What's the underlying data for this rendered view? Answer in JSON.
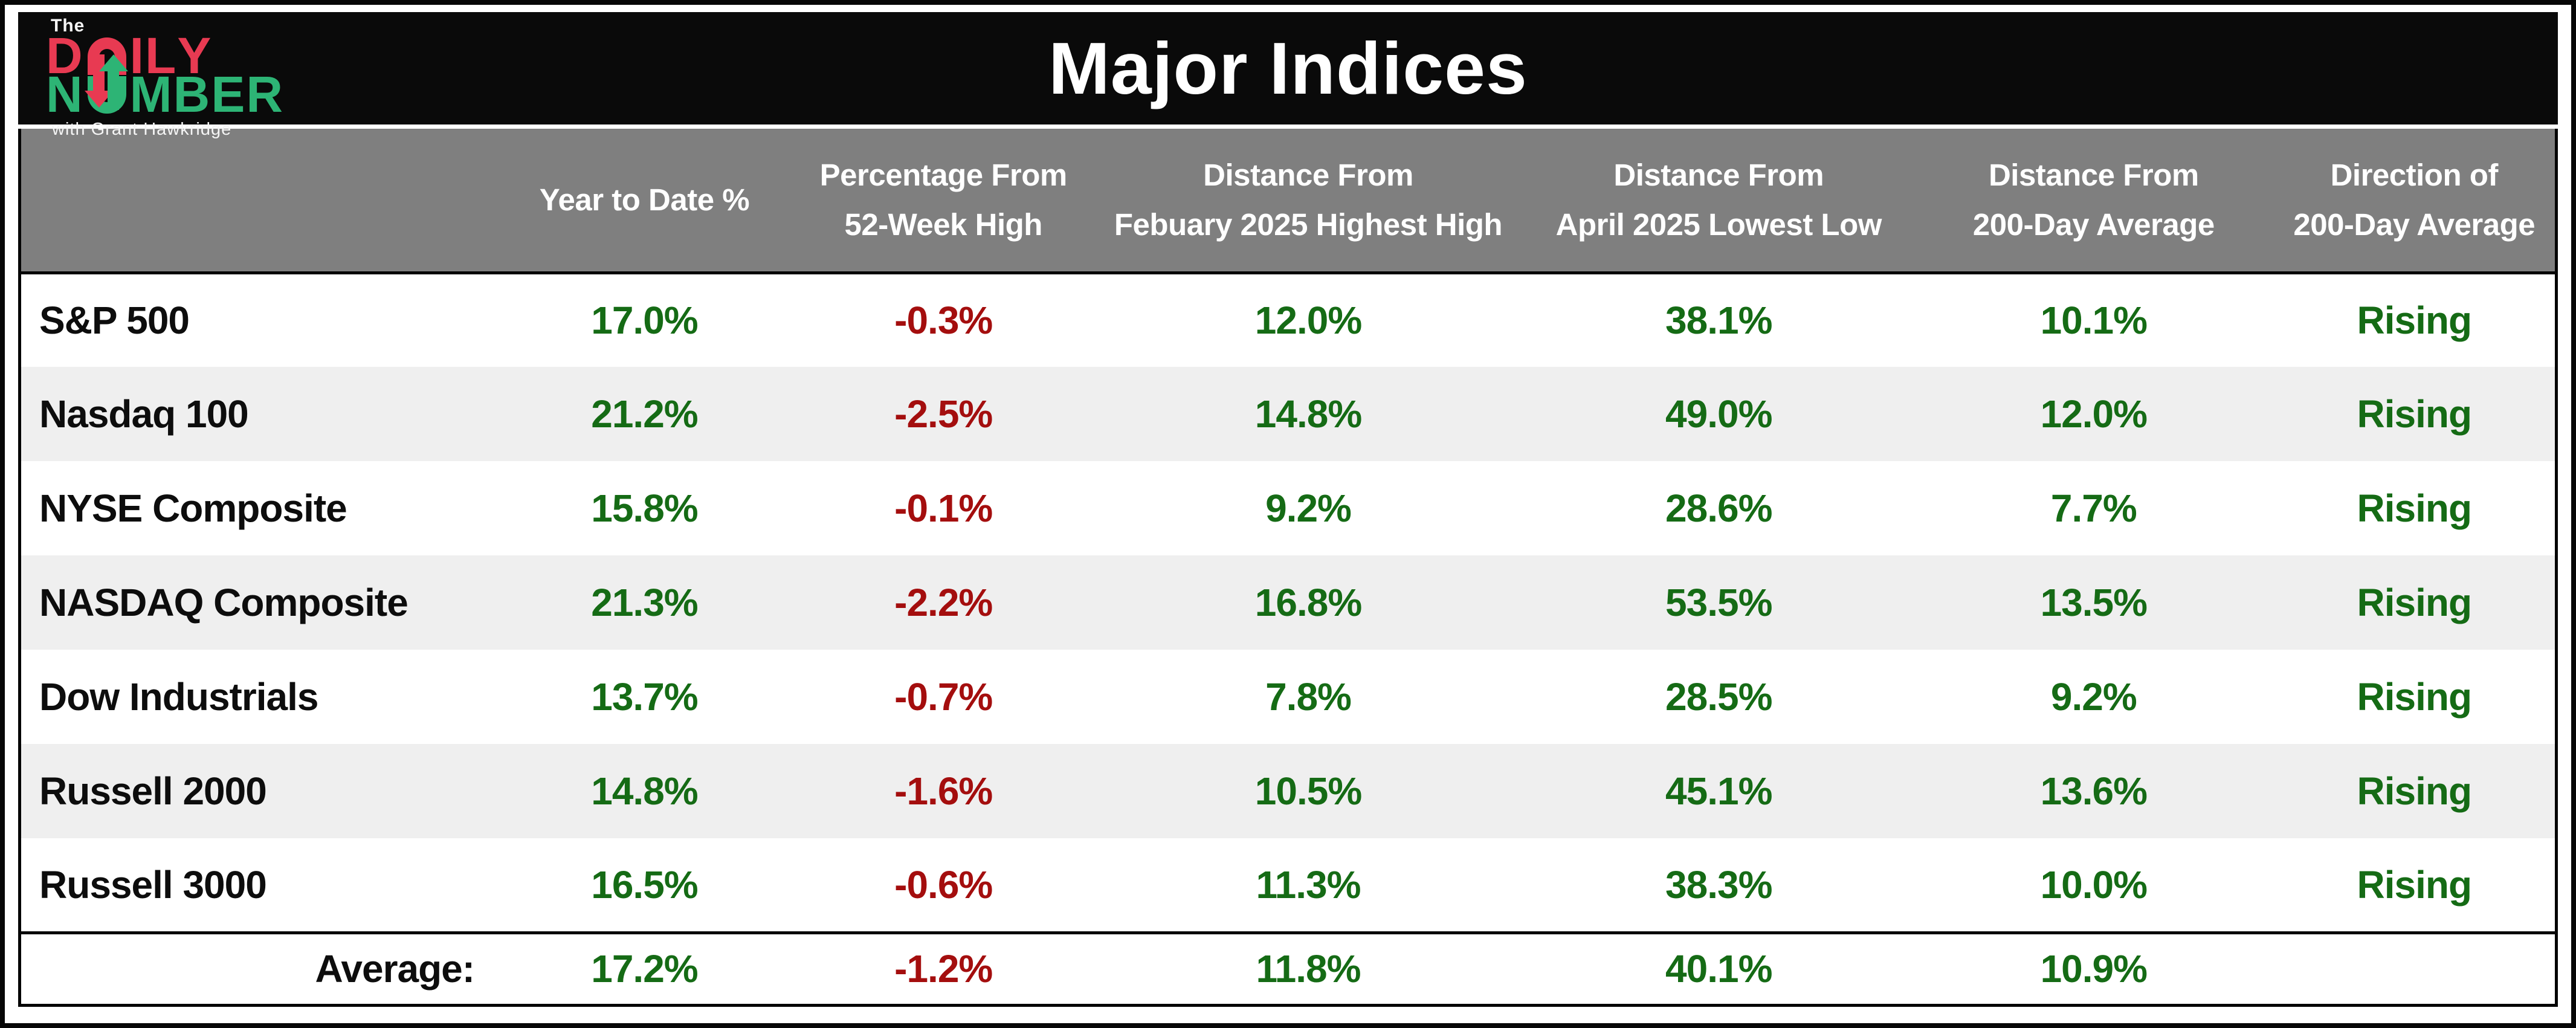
{
  "header": {
    "title": "Major Indices",
    "logo": {
      "the": "The",
      "daily": "DAILY",
      "number": "NUMBER",
      "tagline": "with Grant Hawkridge"
    }
  },
  "colors": {
    "positive": "#156b15",
    "negative": "#a40e0e",
    "logo_red": "#e83a52",
    "logo_green": "#2db475",
    "header_band_bg": "#0a0a0a",
    "column_header_bg": "#7f7f7f",
    "row_alt_bg": "#efefef"
  },
  "chart_data": {
    "type": "table",
    "title": "Major Indices",
    "columns": [
      {
        "id": "name",
        "lines": []
      },
      {
        "id": "ytd",
        "lines": [
          "Year to Date %"
        ]
      },
      {
        "id": "from-52-week-high",
        "lines": [
          "Percentage From",
          "52-Week High"
        ]
      },
      {
        "id": "from-feb-2025-high",
        "lines": [
          "Distance From",
          "Febuary 2025 Highest High"
        ]
      },
      {
        "id": "from-apr-2025-low",
        "lines": [
          "Distance From",
          "April 2025 Lowest Low"
        ]
      },
      {
        "id": "from-200-day-average",
        "lines": [
          "Distance From",
          "200-Day Average"
        ]
      },
      {
        "id": "direction-200-day-average",
        "lines": [
          "Direction of",
          "200-Day Average"
        ]
      }
    ],
    "rows": [
      {
        "name": "S&P 500",
        "values": [
          "17.0%",
          "-0.3%",
          "12.0%",
          "38.1%",
          "10.1%"
        ],
        "direction": "Rising"
      },
      {
        "name": "Nasdaq 100",
        "values": [
          "21.2%",
          "-2.5%",
          "14.8%",
          "49.0%",
          "12.0%"
        ],
        "direction": "Rising"
      },
      {
        "name": "NYSE Composite",
        "values": [
          "15.8%",
          "-0.1%",
          "9.2%",
          "28.6%",
          "7.7%"
        ],
        "direction": "Rising"
      },
      {
        "name": "NASDAQ Composite",
        "values": [
          "21.3%",
          "-2.2%",
          "16.8%",
          "53.5%",
          "13.5%"
        ],
        "direction": "Rising"
      },
      {
        "name": "Dow Industrials",
        "values": [
          "13.7%",
          "-0.7%",
          "7.8%",
          "28.5%",
          "9.2%"
        ],
        "direction": "Rising"
      },
      {
        "name": "Russell 2000",
        "values": [
          "14.8%",
          "-1.6%",
          "10.5%",
          "45.1%",
          "13.6%"
        ],
        "direction": "Rising"
      },
      {
        "name": "Russell 3000",
        "values": [
          "16.5%",
          "-0.6%",
          "11.3%",
          "38.3%",
          "10.0%"
        ],
        "direction": "Rising"
      }
    ],
    "average": {
      "label": "Average:",
      "values": [
        "17.2%",
        "-1.2%",
        "11.8%",
        "40.1%",
        "10.9%"
      ],
      "direction": ""
    }
  }
}
